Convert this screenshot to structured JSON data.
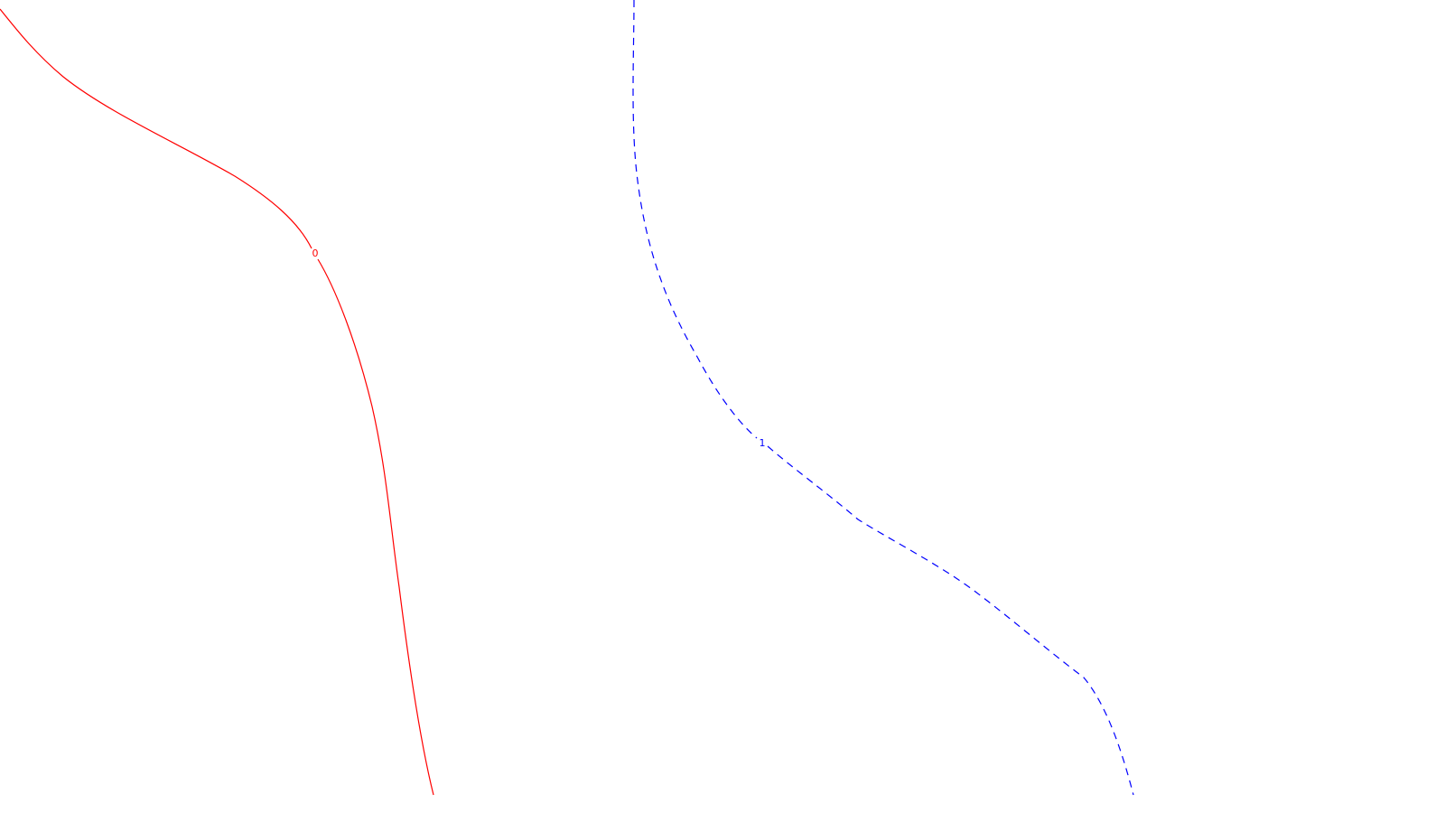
{
  "contours": [
    {
      "label": "0",
      "color": "#ff0000",
      "line_style": "solid"
    },
    {
      "label": "1",
      "color": "#0000ff",
      "line_style": "dashed"
    }
  ]
}
